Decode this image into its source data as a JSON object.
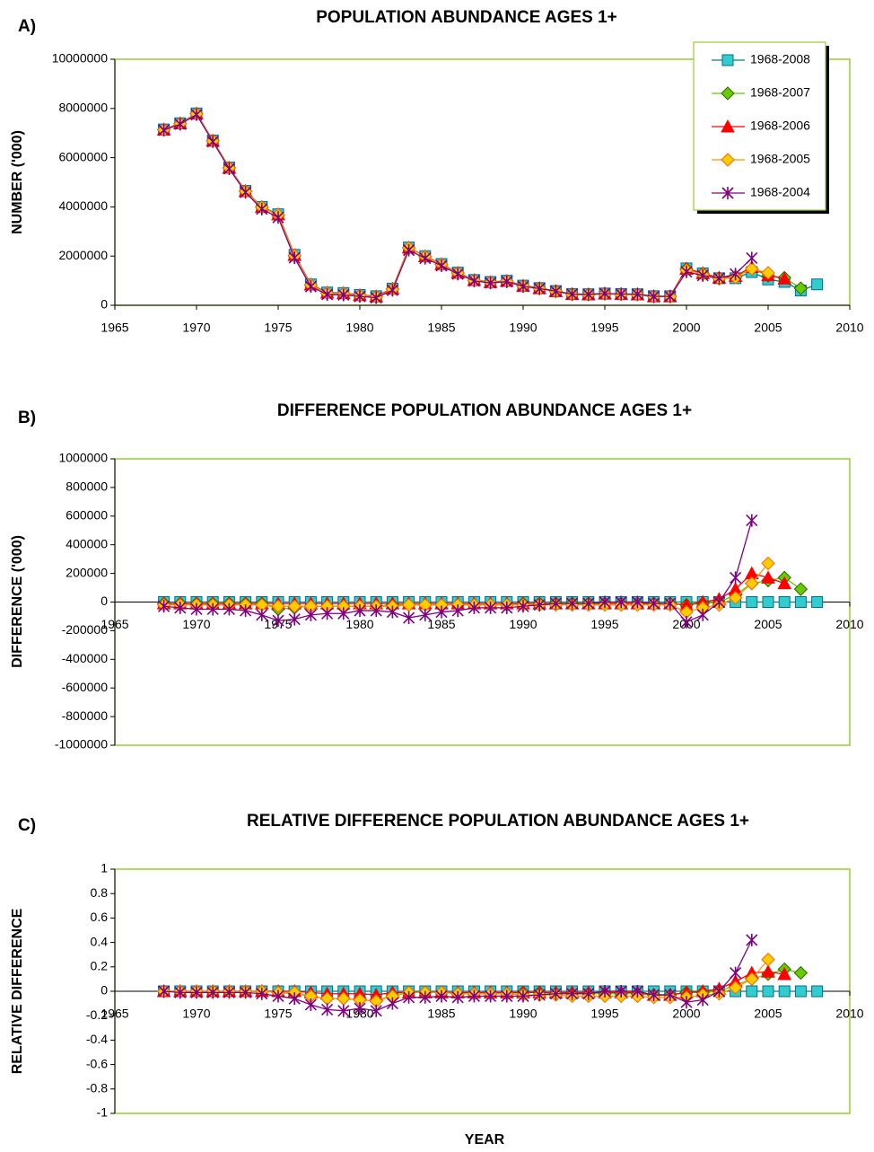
{
  "chart_data": [
    {
      "type": "line",
      "panel": "A)",
      "title": "POPULATION ABUNDANCE AGES 1+",
      "y_label": "NUMBER ('000)",
      "legend": "top-right",
      "xlim": [
        1965,
        2010
      ],
      "xticks": [
        1965,
        1970,
        1975,
        1980,
        1985,
        1990,
        1995,
        2000,
        2005,
        2010
      ],
      "ylim": [
        0,
        10000000
      ],
      "yticks": [
        0,
        2000000,
        4000000,
        6000000,
        8000000,
        10000000
      ],
      "x": [
        1968,
        1969,
        1970,
        1971,
        1972,
        1973,
        1974,
        1975,
        1976,
        1977,
        1978,
        1979,
        1980,
        1981,
        1982,
        1983,
        1984,
        1985,
        1986,
        1987,
        1988,
        1989,
        1990,
        1991,
        1992,
        1993,
        1994,
        1995,
        1996,
        1997,
        1998,
        1999,
        2000,
        2001,
        2002,
        2003,
        2004,
        2005,
        2006,
        2007,
        2008
      ],
      "series": [
        {
          "name": "1968-2008",
          "color": "#33cccc",
          "line_color": "#008080",
          "edge_color": "#006f8f",
          "marker": "square",
          "values": [
            7150000,
            7400000,
            7800000,
            6700000,
            5600000,
            4650000,
            4000000,
            3700000,
            2050000,
            850000,
            520000,
            500000,
            420000,
            370000,
            680000,
            2350000,
            2000000,
            1680000,
            1330000,
            1030000,
            950000,
            1000000,
            800000,
            700000,
            580000,
            460000,
            450000,
            480000,
            460000,
            450000,
            370000,
            370000,
            1500000,
            1300000,
            1100000,
            1100000,
            1350000,
            1050000,
            950000,
            600000,
            850000
          ]
        },
        {
          "name": "1968-2007",
          "color": "#66cc00",
          "line_color": "#66cc00",
          "edge_color": "#336600",
          "marker": "diamond",
          "values": [
            7140000,
            7390000,
            7790000,
            6690000,
            5590000,
            4640000,
            3990000,
            3650000,
            2010000,
            820000,
            490000,
            470000,
            390000,
            340000,
            660000,
            2330000,
            1980000,
            1660000,
            1310000,
            1010000,
            930000,
            980000,
            790000,
            690000,
            570000,
            450000,
            440000,
            470000,
            450000,
            440000,
            360000,
            360000,
            1480000,
            1290000,
            1100000,
            1150000,
            1480000,
            1200000,
            1120000,
            690000,
            null
          ]
        },
        {
          "name": "1968-2006",
          "color": "#ff0000",
          "line_color": "#ff0000",
          "edge_color": "#ff0000",
          "marker": "triangle",
          "values": [
            7140000,
            7390000,
            7790000,
            6690000,
            5590000,
            4640000,
            3990000,
            3690000,
            2040000,
            840000,
            510000,
            490000,
            410000,
            360000,
            670000,
            2340000,
            1990000,
            1670000,
            1320000,
            1020000,
            940000,
            990000,
            790000,
            690000,
            570000,
            450000,
            440000,
            470000,
            450000,
            440000,
            360000,
            360000,
            1480000,
            1300000,
            1120000,
            1190000,
            1550000,
            1220000,
            1080000,
            null,
            null
          ]
        },
        {
          "name": "1968-2005",
          "color": "#ffcc00",
          "line_color": "#ff9900",
          "edge_color": "#ff6600",
          "marker": "diamond",
          "values": [
            7130000,
            7380000,
            7780000,
            6680000,
            5580000,
            4630000,
            3980000,
            3670000,
            2020000,
            820000,
            490000,
            470000,
            390000,
            340000,
            650000,
            2330000,
            1980000,
            1660000,
            1310000,
            1010000,
            930000,
            980000,
            780000,
            680000,
            560000,
            440000,
            430000,
            460000,
            440000,
            430000,
            350000,
            350000,
            1430000,
            1260000,
            1080000,
            1130000,
            1480000,
            1320000,
            null,
            null,
            null
          ]
        },
        {
          "name": "1968-2004",
          "color": "#800080",
          "line_color": "#800080",
          "edge_color": "#800080",
          "marker": "asterisk",
          "values": [
            7120000,
            7360000,
            7750000,
            6650000,
            5550000,
            4590000,
            3910000,
            3570000,
            1930000,
            760000,
            440000,
            420000,
            360000,
            310000,
            610000,
            2240000,
            1910000,
            1610000,
            1270000,
            990000,
            910000,
            960000,
            770000,
            680000,
            570000,
            450000,
            440000,
            480000,
            460000,
            450000,
            360000,
            360000,
            1360000,
            1210000,
            1100000,
            1270000,
            1920000,
            null,
            null,
            null,
            null
          ]
        }
      ]
    },
    {
      "type": "line",
      "panel": "B)",
      "title": "DIFFERENCE POPULATION ABUNDANCE AGES 1+",
      "y_label": "DIFFERENCE ('000)",
      "xlim": [
        1965,
        2010
      ],
      "xticks": [
        1965,
        1970,
        1975,
        1980,
        1985,
        1990,
        1995,
        2000,
        2005,
        2010
      ],
      "ylim": [
        -1000000,
        1000000
      ],
      "yticks": [
        -1000000,
        -800000,
        -600000,
        -400000,
        -200000,
        0,
        200000,
        400000,
        600000,
        800000,
        1000000
      ],
      "x": [
        1968,
        1969,
        1970,
        1971,
        1972,
        1973,
        1974,
        1975,
        1976,
        1977,
        1978,
        1979,
        1980,
        1981,
        1982,
        1983,
        1984,
        1985,
        1986,
        1987,
        1988,
        1989,
        1990,
        1991,
        1992,
        1993,
        1994,
        1995,
        1996,
        1997,
        1998,
        1999,
        2000,
        2001,
        2002,
        2003,
        2004,
        2005,
        2006,
        2007,
        2008
      ],
      "series": [
        {
          "color": "#33cccc",
          "line_color": "#008080",
          "edge_color": "#006f8f",
          "marker": "square",
          "values": [
            0,
            0,
            0,
            0,
            0,
            0,
            0,
            0,
            0,
            0,
            0,
            0,
            0,
            0,
            0,
            0,
            0,
            0,
            0,
            0,
            0,
            0,
            0,
            0,
            0,
            0,
            0,
            0,
            0,
            0,
            0,
            0,
            0,
            0,
            0,
            0,
            0,
            0,
            0,
            0,
            0
          ]
        },
        {
          "color": "#66cc00",
          "line_color": "#66cc00",
          "edge_color": "#336600",
          "marker": "diamond",
          "values": [
            -10000,
            -10000,
            -10000,
            -10000,
            -10000,
            -10000,
            -10000,
            -50000,
            -40000,
            -30000,
            -30000,
            -30000,
            -30000,
            -30000,
            -20000,
            -20000,
            -20000,
            -20000,
            -20000,
            -20000,
            -20000,
            -20000,
            -10000,
            -10000,
            -10000,
            -10000,
            -10000,
            -10000,
            -10000,
            -10000,
            -10000,
            -10000,
            -20000,
            -10000,
            0,
            50000,
            130000,
            150000,
            170000,
            90000,
            null
          ]
        },
        {
          "color": "#ff0000",
          "line_color": "#ff0000",
          "edge_color": "#ff0000",
          "marker": "triangle",
          "values": [
            -10000,
            -10000,
            -10000,
            -10000,
            -10000,
            -10000,
            -10000,
            -10000,
            -10000,
            -10000,
            -10000,
            -10000,
            -10000,
            -10000,
            -10000,
            -10000,
            -10000,
            -10000,
            -10000,
            -10000,
            -10000,
            -10000,
            -10000,
            -10000,
            -10000,
            -10000,
            -10000,
            -10000,
            -10000,
            -10000,
            -10000,
            -10000,
            -20000,
            0,
            20000,
            90000,
            200000,
            170000,
            130000,
            null,
            null
          ]
        },
        {
          "color": "#ffcc00",
          "line_color": "#ff9900",
          "edge_color": "#ff6600",
          "marker": "diamond",
          "values": [
            -20000,
            -20000,
            -20000,
            -20000,
            -20000,
            -20000,
            -20000,
            -30000,
            -30000,
            -30000,
            -30000,
            -30000,
            -30000,
            -30000,
            -30000,
            -20000,
            -20000,
            -20000,
            -20000,
            -20000,
            -20000,
            -20000,
            -20000,
            -20000,
            -20000,
            -20000,
            -20000,
            -20000,
            -20000,
            -20000,
            -20000,
            -20000,
            -70000,
            -40000,
            -20000,
            30000,
            130000,
            270000,
            null,
            null,
            null
          ]
        },
        {
          "color": "#800080",
          "line_color": "#800080",
          "edge_color": "#800080",
          "marker": "asterisk",
          "values": [
            -30000,
            -40000,
            -50000,
            -50000,
            -50000,
            -60000,
            -90000,
            -130000,
            -120000,
            -90000,
            -80000,
            -80000,
            -60000,
            -60000,
            -70000,
            -110000,
            -90000,
            -70000,
            -60000,
            -40000,
            -40000,
            -40000,
            -30000,
            -20000,
            -10000,
            -10000,
            -10000,
            0,
            0,
            0,
            -10000,
            -10000,
            -140000,
            -90000,
            0,
            170000,
            570000,
            null,
            null,
            null,
            null
          ]
        }
      ]
    },
    {
      "type": "line",
      "panel": "C)",
      "title": "RELATIVE DIFFERENCE POPULATION ABUNDANCE AGES 1+",
      "y_label": "RELATIVE DIFFERENCE",
      "x_label": "YEAR",
      "xlim": [
        1965,
        2010
      ],
      "xticks": [
        1965,
        1970,
        1975,
        1980,
        1985,
        1990,
        1995,
        2000,
        2005,
        2010
      ],
      "ylim": [
        -1,
        1
      ],
      "yticks": [
        -1,
        -0.8,
        -0.6,
        -0.4,
        -0.2,
        0,
        0.2,
        0.4,
        0.6,
        0.8,
        1
      ],
      "x": [
        1968,
        1969,
        1970,
        1971,
        1972,
        1973,
        1974,
        1975,
        1976,
        1977,
        1978,
        1979,
        1980,
        1981,
        1982,
        1983,
        1984,
        1985,
        1986,
        1987,
        1988,
        1989,
        1990,
        1991,
        1992,
        1993,
        1994,
        1995,
        1996,
        1997,
        1998,
        1999,
        2000,
        2001,
        2002,
        2003,
        2004,
        2005,
        2006,
        2007,
        2008
      ],
      "series": [
        {
          "color": "#33cccc",
          "line_color": "#008080",
          "edge_color": "#006f8f",
          "marker": "square",
          "values": [
            0,
            0,
            0,
            0,
            0,
            0,
            0,
            0,
            0,
            0,
            0,
            0,
            0,
            0,
            0,
            0,
            0,
            0,
            0,
            0,
            0,
            0,
            0,
            0,
            0,
            0,
            0,
            0,
            0,
            0,
            0,
            0,
            0,
            0,
            0,
            0,
            0,
            0,
            0,
            0,
            0
          ]
        },
        {
          "color": "#66cc00",
          "line_color": "#66cc00",
          "edge_color": "#336600",
          "marker": "diamond",
          "values": [
            0,
            0,
            0,
            0,
            0,
            0,
            0,
            -0.01,
            -0.02,
            -0.04,
            -0.06,
            -0.06,
            -0.07,
            -0.08,
            -0.03,
            -0.01,
            -0.01,
            -0.01,
            -0.02,
            -0.02,
            -0.02,
            -0.02,
            -0.01,
            -0.01,
            -0.02,
            -0.02,
            -0.02,
            -0.02,
            -0.02,
            -0.02,
            -0.03,
            -0.03,
            -0.01,
            -0.01,
            0,
            0.05,
            0.1,
            0.14,
            0.18,
            0.15,
            null
          ]
        },
        {
          "color": "#ff0000",
          "line_color": "#ff0000",
          "edge_color": "#ff0000",
          "marker": "triangle",
          "values": [
            0,
            0,
            0,
            0,
            0,
            0,
            0,
            0,
            0,
            -0.01,
            -0.02,
            -0.02,
            -0.02,
            -0.03,
            -0.01,
            -0.01,
            -0.01,
            -0.01,
            -0.01,
            -0.01,
            -0.01,
            -0.01,
            -0.01,
            -0.01,
            -0.01,
            -0.01,
            -0.01,
            -0.01,
            -0.01,
            -0.01,
            -0.03,
            -0.03,
            -0.01,
            0,
            0.02,
            0.08,
            0.15,
            0.16,
            0.14,
            null,
            null
          ]
        },
        {
          "color": "#ffcc00",
          "line_color": "#ff9900",
          "edge_color": "#ff6600",
          "marker": "diamond",
          "values": [
            0,
            0,
            0,
            0,
            0,
            0,
            0,
            -0.01,
            -0.01,
            -0.04,
            -0.06,
            -0.06,
            -0.07,
            -0.08,
            -0.04,
            -0.01,
            -0.01,
            -0.01,
            -0.02,
            -0.02,
            -0.02,
            -0.02,
            -0.03,
            -0.03,
            -0.03,
            -0.04,
            -0.04,
            -0.04,
            -0.04,
            -0.04,
            -0.05,
            -0.05,
            -0.05,
            -0.03,
            -0.02,
            0.03,
            0.1,
            0.26,
            null,
            null,
            null
          ]
        },
        {
          "color": "#800080",
          "line_color": "#800080",
          "edge_color": "#800080",
          "marker": "asterisk",
          "values": [
            0,
            -0.01,
            -0.01,
            -0.01,
            -0.01,
            -0.01,
            -0.02,
            -0.04,
            -0.06,
            -0.11,
            -0.15,
            -0.16,
            -0.14,
            -0.16,
            -0.1,
            -0.05,
            -0.05,
            -0.04,
            -0.05,
            -0.04,
            -0.04,
            -0.04,
            -0.04,
            -0.03,
            -0.02,
            -0.02,
            -0.02,
            0,
            0,
            0,
            -0.03,
            -0.03,
            -0.09,
            -0.07,
            0,
            0.15,
            0.42,
            null,
            null,
            null,
            null
          ]
        }
      ]
    }
  ]
}
